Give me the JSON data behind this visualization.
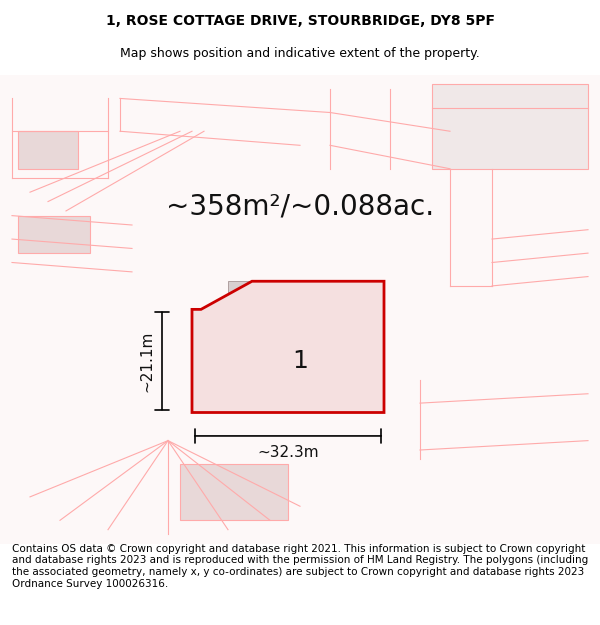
{
  "title_line1": "1, ROSE COTTAGE DRIVE, STOURBRIDGE, DY8 5PF",
  "title_line2": "Map shows position and indicative extent of the property.",
  "area_text": "~358m²/~0.088ac.",
  "label_number": "1",
  "dim_height": "~21.1m",
  "dim_width": "~32.3m",
  "footer_text": "Contains OS data © Crown copyright and database right 2021. This information is subject to Crown copyright and database rights 2023 and is reproduced with the permission of HM Land Registry. The polygons (including the associated geometry, namely x, y co-ordinates) are subject to Crown copyright and database rights 2023 Ordnance Survey 100026316.",
  "bg_color": "#ffffff",
  "map_bg": "#f5f0f0",
  "plot_color_fill": "#f0e8e8",
  "plot_edge_color": "#cc0000",
  "other_plot_color": "#f5e8e8",
  "other_edge_color": "#ffaaaa",
  "dim_line_color": "#000000",
  "title_fontsize": 10,
  "subtitle_fontsize": 9,
  "area_fontsize": 20,
  "label_fontsize": 18,
  "dim_fontsize": 11,
  "footer_fontsize": 7.5
}
